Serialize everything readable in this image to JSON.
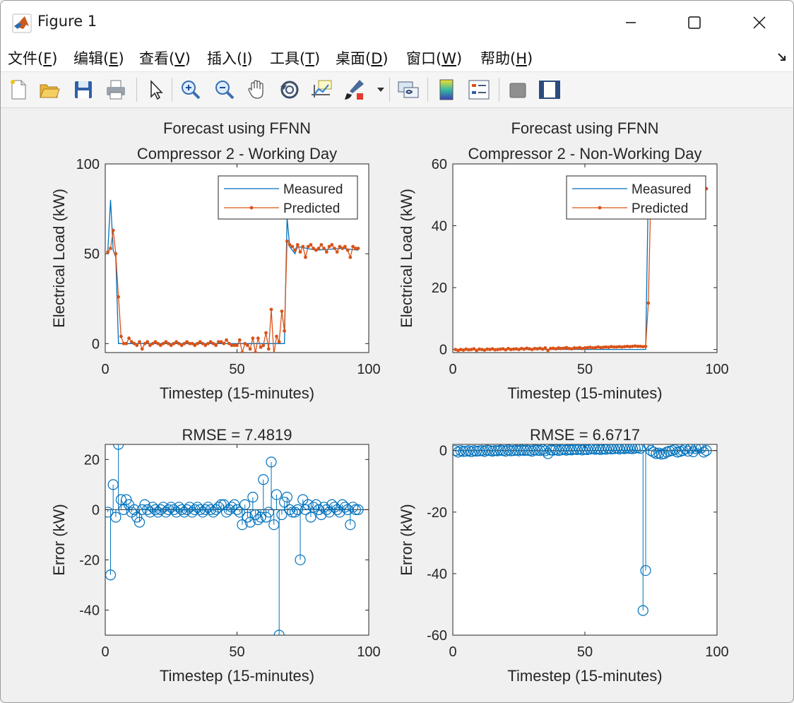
{
  "window": {
    "title": "Figure 1",
    "controls": {
      "minimize": "minimize",
      "maximize": "maximize",
      "close": "close"
    }
  },
  "menu": {
    "items": [
      {
        "label": "文件(",
        "key": "F",
        "tail": ")"
      },
      {
        "label": "编辑(",
        "key": "E",
        "tail": ")"
      },
      {
        "label": "查看(",
        "key": "V",
        "tail": ")"
      },
      {
        "label": "插入(",
        "key": "I",
        "tail": ")"
      },
      {
        "label": "工具(",
        "key": "T",
        "tail": ")"
      },
      {
        "label": "桌面(",
        "key": "D",
        "tail": ")"
      },
      {
        "label": "窗口(",
        "key": "W",
        "tail": ")"
      },
      {
        "label": "帮助(",
        "key": "H",
        "tail": ")"
      }
    ]
  },
  "toolbar": {
    "icons": [
      "new-figure-icon",
      "open-folder-icon",
      "save-icon",
      "print-icon",
      "select-arrow-icon",
      "zoom-in-icon",
      "zoom-out-icon",
      "pan-hand-icon",
      "rotate-3d-icon",
      "data-cursor-icon",
      "brush-icon",
      "brush-dropdown-icon",
      "link-plot-icon",
      "colorbar-icon",
      "legend-icon",
      "hide-plot-tools-icon",
      "show-plot-tools-icon"
    ]
  },
  "colors": {
    "measured": "#0072BD",
    "predicted": "#D95319",
    "error": "#0072BD"
  },
  "chart_data": [
    {
      "type": "line",
      "title": "Forecast using FFNN",
      "subtitle": "Compressor 2 - Working Day",
      "xlabel": "Timestep (15-minutes)",
      "ylabel": "Electrical Load (kW)",
      "xlim": [
        0,
        100
      ],
      "ylim": [
        -5,
        100
      ],
      "xticks": [
        "0",
        "50",
        "100"
      ],
      "yticks": [
        "0",
        "50",
        "100"
      ],
      "legend": [
        "Measured",
        "Predicted"
      ],
      "legend_position": "top-right",
      "series": [
        {
          "name": "Measured",
          "x": [
            1,
            2,
            3,
            4,
            5,
            6,
            60,
            67,
            68,
            69,
            70,
            72,
            73,
            80,
            90,
            96
          ],
          "y": [
            52,
            80,
            52,
            48,
            0,
            0,
            0,
            0,
            0,
            70,
            54,
            50,
            54,
            52,
            53,
            52
          ]
        },
        {
          "name": "Predicted",
          "x": [
            1,
            2,
            3,
            4,
            5,
            6,
            7,
            8,
            9,
            10,
            11,
            12,
            13,
            14,
            15,
            16,
            17,
            18,
            19,
            20,
            21,
            22,
            23,
            24,
            25,
            26,
            27,
            28,
            29,
            30,
            31,
            32,
            33,
            34,
            35,
            36,
            37,
            38,
            39,
            40,
            41,
            42,
            43,
            44,
            45,
            46,
            47,
            48,
            49,
            50,
            51,
            52,
            53,
            54,
            55,
            56,
            57,
            58,
            59,
            60,
            61,
            62,
            63,
            64,
            65,
            66,
            67,
            68,
            69,
            70,
            71,
            72,
            73,
            74,
            75,
            76,
            77,
            78,
            79,
            80,
            81,
            82,
            83,
            84,
            85,
            86,
            87,
            88,
            89,
            90,
            91,
            92,
            93,
            94,
            95,
            96
          ],
          "y": [
            51,
            53,
            63,
            50,
            26,
            4,
            0,
            0,
            3,
            1,
            0,
            -1,
            1,
            -3,
            0,
            1,
            -1,
            0,
            1,
            0,
            -1,
            0,
            1,
            0,
            -1,
            0,
            1,
            0,
            -1,
            0,
            1,
            0,
            0,
            -1,
            0,
            1,
            0,
            -1,
            0,
            1,
            0,
            -1,
            1,
            1,
            0,
            2,
            0,
            -1,
            -1,
            -1,
            2,
            -5,
            0,
            -1,
            -3,
            3,
            -5,
            3,
            -2,
            -1,
            6,
            -3,
            19,
            -6,
            4,
            1,
            18,
            7,
            57,
            55,
            54,
            52,
            55,
            51,
            54,
            48,
            54,
            55,
            53,
            52,
            53,
            55,
            53,
            51,
            54,
            55,
            53,
            51,
            54,
            53,
            54,
            52,
            48,
            54,
            53,
            53
          ]
        }
      ]
    },
    {
      "type": "line",
      "title": "Forecast using FFNN",
      "subtitle": "Compressor 2 - Non-Working Day",
      "xlabel": "Timestep (15-minutes)",
      "ylabel": "Electrical Load (kW)",
      "xlim": [
        0,
        100
      ],
      "ylim": [
        -1,
        60
      ],
      "xticks": [
        "0",
        "50",
        "100"
      ],
      "yticks": [
        "0",
        "20",
        "40",
        "60"
      ],
      "legend": [
        "Measured",
        "Predicted"
      ],
      "legend_position": "top-right",
      "series": [
        {
          "name": "Measured",
          "x": [
            1,
            72,
            73,
            74,
            75,
            96
          ],
          "y": [
            0,
            0,
            0,
            52,
            52,
            52
          ]
        },
        {
          "name": "Predicted",
          "x": [
            1,
            2,
            3,
            4,
            5,
            6,
            7,
            8,
            9,
            10,
            11,
            12,
            13,
            14,
            15,
            16,
            17,
            18,
            19,
            20,
            21,
            22,
            23,
            24,
            25,
            26,
            27,
            28,
            29,
            30,
            31,
            32,
            33,
            34,
            35,
            36,
            37,
            38,
            39,
            40,
            41,
            42,
            43,
            44,
            45,
            46,
            47,
            48,
            49,
            50,
            51,
            52,
            53,
            54,
            55,
            56,
            57,
            58,
            59,
            60,
            61,
            62,
            63,
            64,
            65,
            66,
            67,
            68,
            69,
            70,
            71,
            72,
            73,
            74,
            75,
            96
          ],
          "y": [
            0,
            -0.3,
            0,
            -0.2,
            0.1,
            -0.1,
            0,
            0.2,
            -0.3,
            0.1,
            0,
            -0.2,
            0.1,
            0,
            0.2,
            -0.1,
            0,
            0.1,
            0.2,
            -0.1,
            0.3,
            0,
            0.1,
            0.2,
            0,
            0.3,
            0.1,
            0.4,
            0.2,
            0,
            0.3,
            0.2,
            0.4,
            0.1,
            0.5,
            -0.3,
            0.3,
            0.4,
            0.2,
            0.5,
            0.3,
            0.4,
            0.6,
            0.3,
            0.2,
            0.5,
            0.4,
            0.6,
            0.3,
            0.5,
            0.6,
            0.7,
            0.5,
            0.6,
            0.8,
            0.6,
            0.7,
            0.8,
            0.7,
            0.9,
            0.8,
            0.8,
            0.9,
            0.8,
            0.9,
            1.0,
            0.9,
            1.0,
            1.1,
            1.0,
            1.0,
            0.9,
            1.0,
            15,
            52,
            52
          ]
        }
      ]
    },
    {
      "type": "scatter",
      "title": "RMSE = 7.4819",
      "xlabel": "Timestep (15-minutes)",
      "ylabel": "Error (kW)",
      "xlim": [
        0,
        100
      ],
      "ylim": [
        -50,
        26
      ],
      "xticks": [
        "0",
        "50",
        "100"
      ],
      "yticks": [
        "20",
        "0",
        "-20",
        "-40"
      ],
      "x": [
        1,
        2,
        3,
        4,
        5,
        6,
        7,
        8,
        9,
        10,
        11,
        12,
        13,
        14,
        15,
        16,
        17,
        18,
        19,
        20,
        21,
        22,
        23,
        24,
        25,
        26,
        27,
        28,
        29,
        30,
        31,
        32,
        33,
        34,
        35,
        36,
        37,
        38,
        39,
        40,
        41,
        42,
        43,
        44,
        45,
        46,
        47,
        48,
        49,
        50,
        51,
        52,
        53,
        54,
        55,
        56,
        57,
        58,
        59,
        60,
        61,
        62,
        63,
        64,
        65,
        66,
        67,
        68,
        69,
        70,
        71,
        72,
        73,
        74,
        75,
        76,
        77,
        78,
        79,
        80,
        81,
        82,
        83,
        84,
        85,
        86,
        87,
        88,
        89,
        90,
        91,
        92,
        93,
        94,
        95,
        96
      ],
      "y": [
        -1,
        -26,
        10,
        -3,
        26,
        4,
        0,
        4,
        2,
        -1,
        0,
        -3,
        -5,
        0,
        2,
        0,
        -1,
        1,
        0,
        -1,
        0,
        1,
        -1,
        0,
        1,
        0,
        -1,
        1,
        0,
        -1,
        0,
        1,
        -1,
        0,
        1,
        0,
        -1,
        0,
        1,
        0,
        -1,
        0,
        1,
        2,
        2,
        -1,
        0,
        1,
        2,
        0,
        -1,
        -6,
        2,
        -3,
        -5,
        5,
        -2,
        -4,
        -3,
        12,
        -3,
        -1,
        19,
        -6,
        6,
        -50,
        -2,
        3,
        5,
        0,
        -1,
        -1,
        0,
        -20,
        4,
        0,
        2,
        -3,
        1,
        2,
        0,
        -2,
        1,
        0,
        -1,
        2,
        1,
        0,
        -1,
        2,
        1,
        0,
        -6,
        1,
        0,
        0
      ]
    },
    {
      "type": "scatter",
      "title": "RMSE = 6.6717",
      "xlabel": "Timestep (15-minutes)",
      "ylabel": "Error (kW)",
      "xlim": [
        0,
        100
      ],
      "ylim": [
        -60,
        2
      ],
      "xticks": [
        "0",
        "50",
        "100"
      ],
      "yticks": [
        "0",
        "-20",
        "-40",
        "-60"
      ],
      "x": [
        1,
        2,
        3,
        4,
        5,
        6,
        7,
        8,
        9,
        10,
        11,
        12,
        13,
        14,
        15,
        16,
        17,
        18,
        19,
        20,
        21,
        22,
        23,
        24,
        25,
        26,
        27,
        28,
        29,
        30,
        31,
        32,
        33,
        34,
        35,
        36,
        37,
        38,
        39,
        40,
        41,
        42,
        43,
        44,
        45,
        46,
        47,
        48,
        49,
        50,
        51,
        52,
        53,
        54,
        55,
        56,
        57,
        58,
        59,
        60,
        61,
        62,
        63,
        64,
        65,
        66,
        67,
        68,
        69,
        70,
        71,
        72,
        73,
        74,
        75,
        76,
        77,
        78,
        79,
        80,
        81,
        82,
        83,
        84,
        85,
        86,
        87,
        88,
        89,
        90,
        91,
        92,
        93,
        94,
        95,
        96
      ],
      "y": [
        0,
        -0.5,
        0,
        -0.3,
        -0.2,
        0,
        -0.4,
        0,
        -0.2,
        -0.1,
        0,
        -0.3,
        0.1,
        0,
        -0.2,
        0,
        -0.1,
        0.1,
        0,
        -0.2,
        0.2,
        -0.1,
        0,
        0.1,
        -0.1,
        0.2,
        0,
        0.1,
        0,
        -0.2,
        0.2,
        0.1,
        0,
        0.3,
        -0.1,
        -1,
        0.2,
        0.1,
        0.3,
        0,
        0.2,
        0.4,
        0.1,
        0.3,
        0.2,
        0.4,
        0.3,
        0.5,
        0.2,
        0.4,
        0.3,
        0.5,
        0.6,
        0.4,
        0.5,
        0.3,
        0.6,
        0.4,
        0.7,
        0.5,
        0.6,
        0.8,
        0.5,
        0.7,
        0.6,
        0.8,
        0.7,
        0.6,
        0.8,
        0.9,
        0.7,
        -52,
        -39,
        2,
        0,
        -0.5,
        -1,
        -0.8,
        -1.2,
        -1,
        -0.5,
        -0.2,
        0,
        0.3,
        -0.5,
        -0.3,
        0,
        0.5,
        -0.2,
        0.8,
        -0.4,
        0.6,
        1,
        0.8,
        -0.5,
        0
      ]
    }
  ]
}
